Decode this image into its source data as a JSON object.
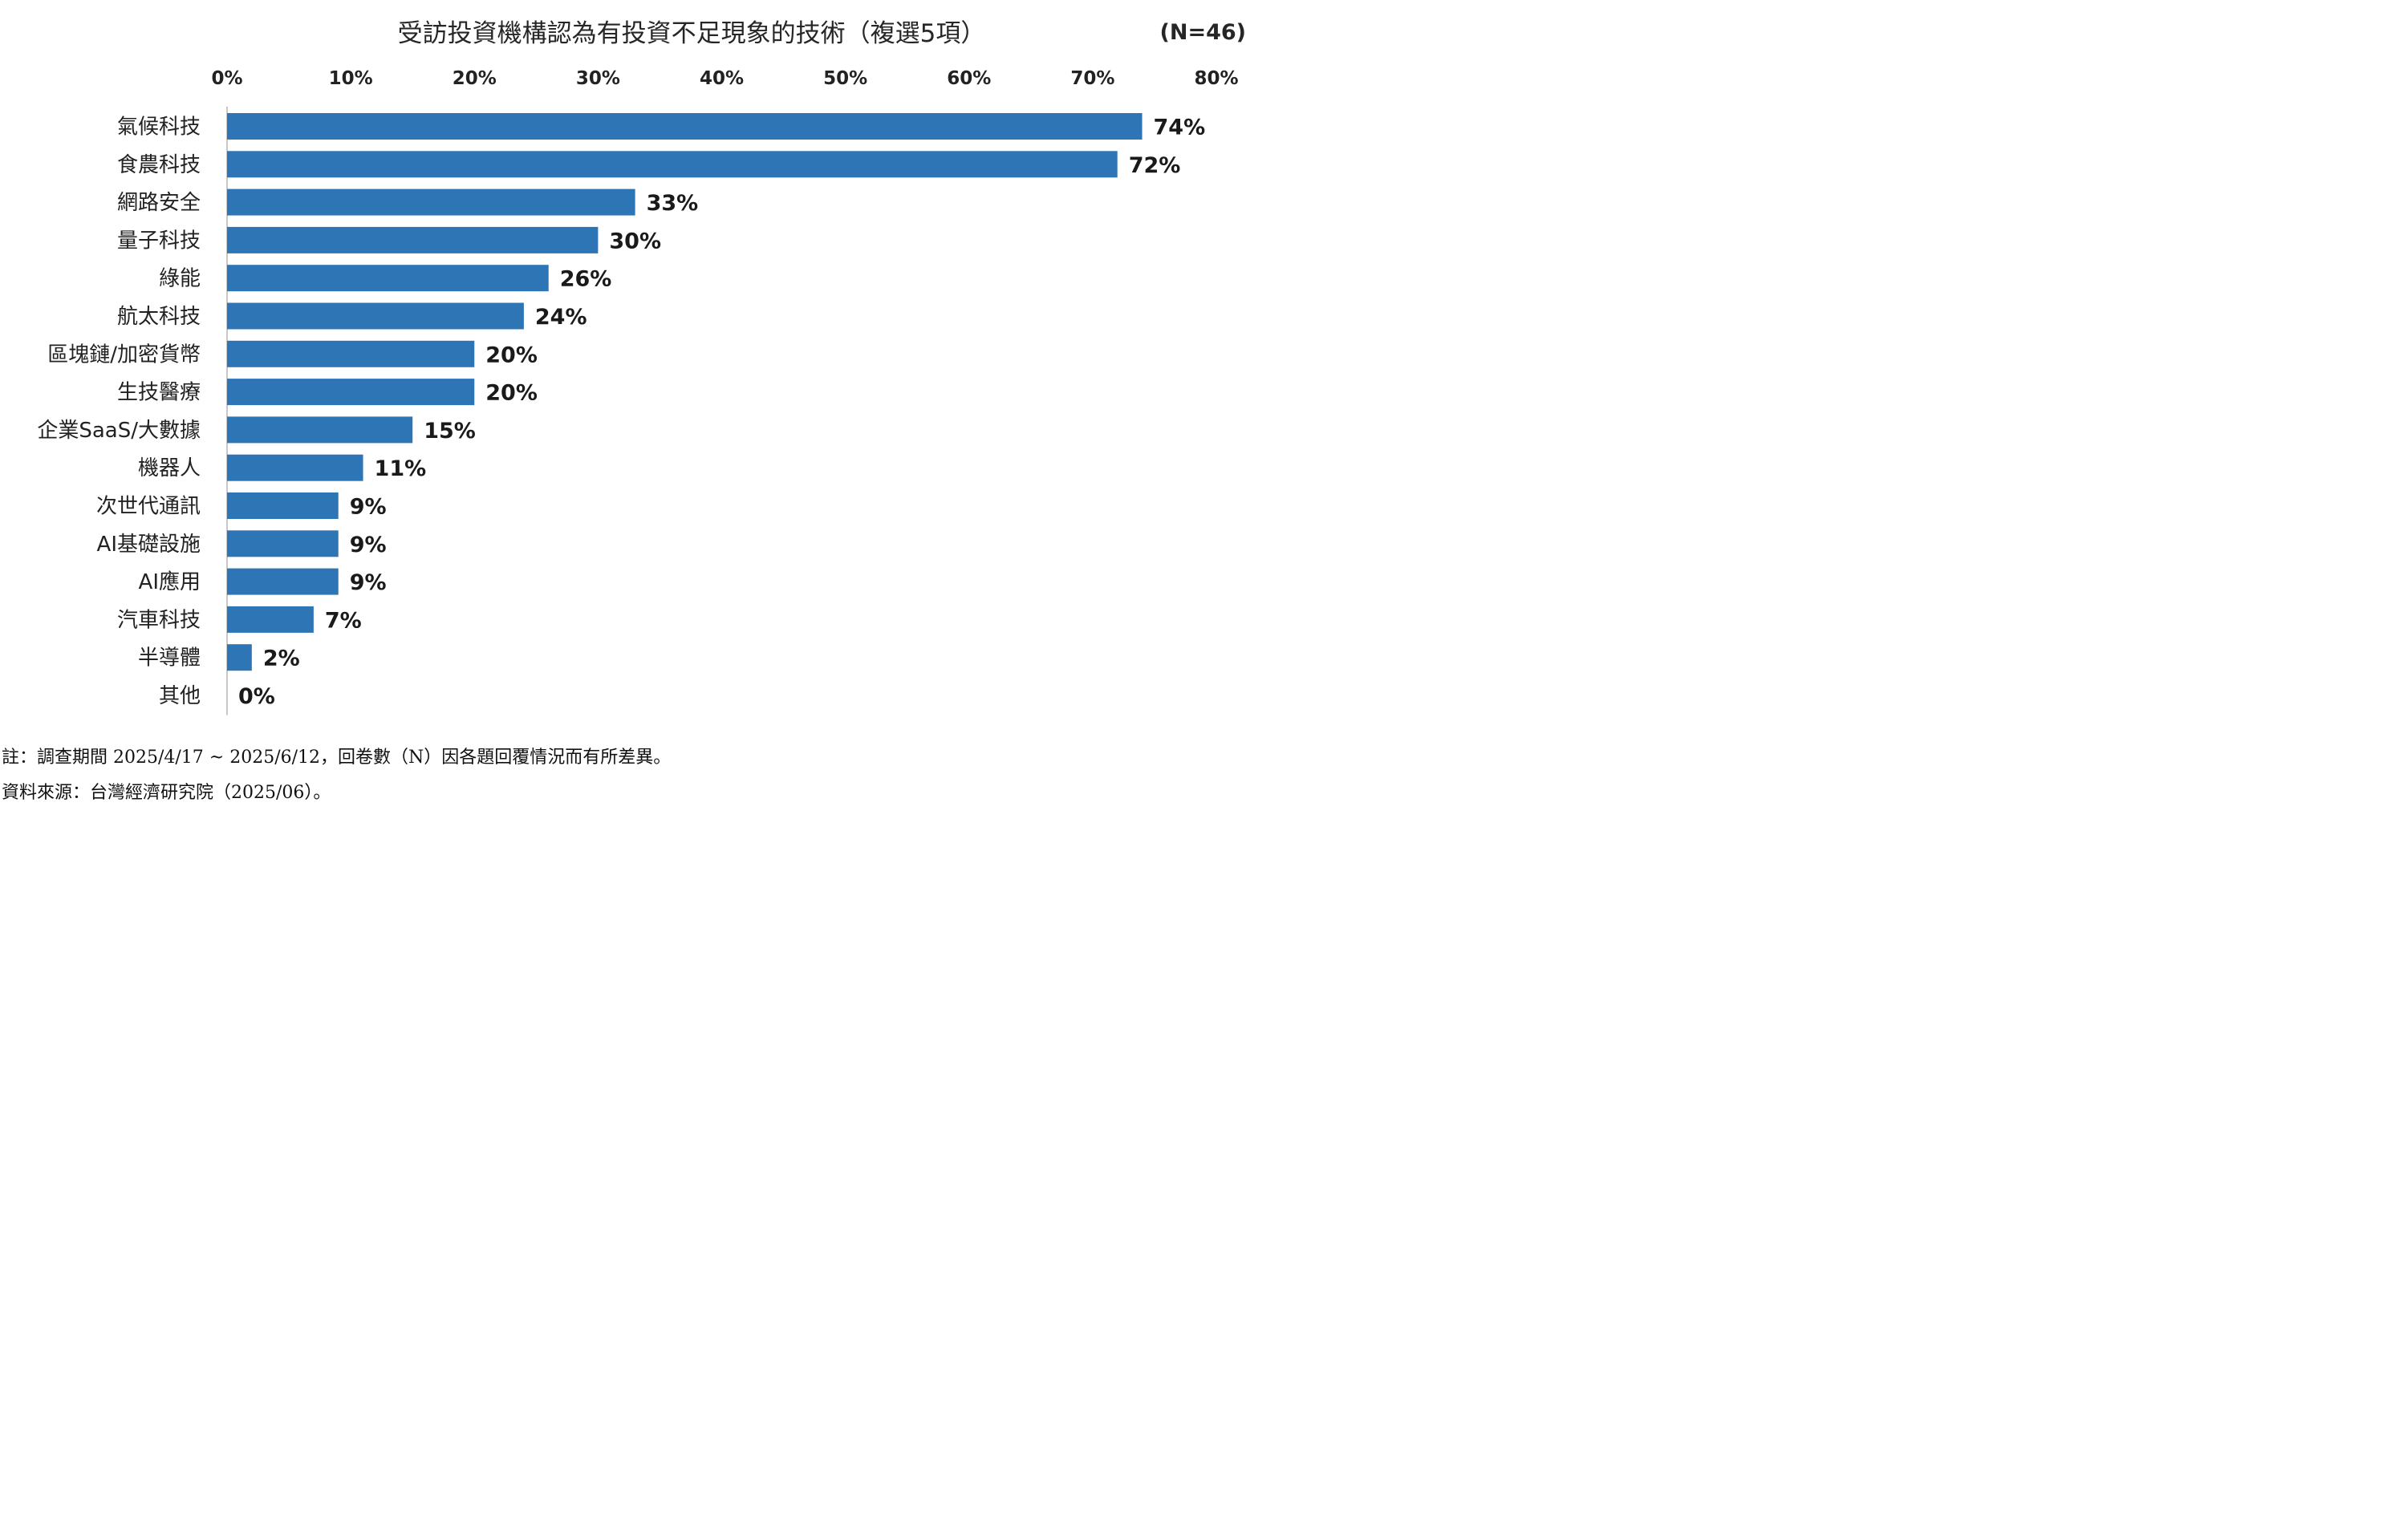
{
  "chart_data": {
    "type": "bar",
    "orientation": "horizontal",
    "title": "受訪投資機構認為有投資不足現象的技術（複選5項）",
    "sample_size": "(N=46)",
    "categories": [
      "氣候科技",
      "食農科技",
      "網路安全",
      "量子科技",
      "綠能",
      "航太科技",
      "區塊鏈/加密貨幣",
      "生技醫療",
      "企業SaaS/大數據",
      "機器人",
      "次世代通訊",
      "AI基礎設施",
      "AI應用",
      "汽車科技",
      "半導體",
      "其他"
    ],
    "values": [
      74,
      72,
      33,
      30,
      26,
      24,
      20,
      20,
      15,
      11,
      9,
      9,
      9,
      7,
      2,
      0
    ],
    "value_unit": "%",
    "xlim": [
      0,
      80
    ],
    "ticks": [
      0,
      10,
      20,
      30,
      40,
      50,
      60,
      70,
      80
    ],
    "axis_position": "top",
    "grid": false,
    "legend": "none",
    "bar_color": "#2E75B6"
  },
  "notes": {
    "survey": "註：調查期間 2025/4/17 ~ 2025/6/12，回卷數（N）因各題回覆情況而有所差異。",
    "source": "資料來源：台灣經濟研究院（2025/06）。"
  }
}
